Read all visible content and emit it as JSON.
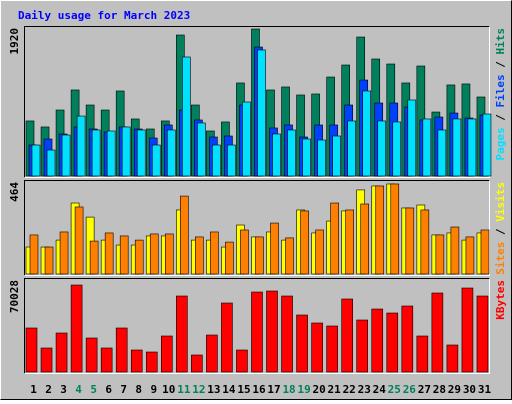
{
  "chart_data": [
    {
      "type": "bar",
      "title": "Daily usage for March 2023",
      "ylim": [
        0,
        1920
      ],
      "yticks": [
        1920
      ],
      "legend_separator": " / ",
      "series": [
        {
          "name": "Hits",
          "color": "#00805c",
          "values": [
            714,
            636,
            856,
            1116,
            921,
            856,
            1103,
            740,
            610,
            714,
            1829,
            921,
            584,
            701,
            1207,
            1907,
            1116,
            1155,
            1051,
            1064,
            1284,
            1440,
            1803,
            1518,
            1453,
            1207,
            1427,
            830,
            1181,
            1194,
            1025
          ]
        },
        {
          "name": "Files",
          "color": "#0040ff",
          "values": [
            402,
            480,
            545,
            636,
            610,
            571,
            636,
            610,
            493,
            662,
            856,
            727,
            506,
            519,
            921,
            1673,
            623,
            662,
            506,
            662,
            662,
            921,
            1245,
            947,
            947,
            895,
            727,
            765,
            817,
            752,
            791
          ]
        },
        {
          "name": "Pages",
          "color": "#00e0ff",
          "values": [
            402,
            337,
            532,
            778,
            597,
            584,
            636,
            597,
            402,
            597,
            1544,
            688,
            402,
            402,
            960,
            1635,
            545,
            597,
            480,
            467,
            519,
            714,
            1103,
            714,
            701,
            986,
            740,
            597,
            740,
            740,
            804
          ]
        }
      ]
    },
    {
      "type": "bar",
      "ylim": [
        0,
        464
      ],
      "yticks": [
        464
      ],
      "legend_separator": " / ",
      "series": [
        {
          "name": "Visits",
          "color": "#ffff00",
          "values": [
            136,
            136,
            171,
            358,
            287,
            171,
            146,
            146,
            192,
            192,
            323,
            171,
            171,
            136,
            247,
            187,
            212,
            171,
            323,
            207,
            267,
            318,
            424,
            444,
            454,
            333,
            348,
            197,
            207,
            171,
            207
          ]
        },
        {
          "name": "Sites",
          "color": "#ff8000",
          "values": [
            197,
            136,
            212,
            338,
            166,
            207,
            192,
            171,
            202,
            202,
            393,
            187,
            212,
            161,
            222,
            187,
            257,
            182,
            318,
            222,
            358,
            323,
            353,
            444,
            454,
            333,
            323,
            197,
            237,
            187,
            222
          ]
        }
      ]
    },
    {
      "type": "bar",
      "ylim": [
        0,
        70028
      ],
      "yticks": [
        70028
      ],
      "categories": [
        "1",
        "2",
        "3",
        "4",
        "5",
        "6",
        "7",
        "8",
        "9",
        "10",
        "11",
        "12",
        "13",
        "14",
        "15",
        "16",
        "17",
        "18",
        "19",
        "20",
        "21",
        "22",
        "23",
        "24",
        "25",
        "26",
        "27",
        "28",
        "29",
        "30",
        "31"
      ],
      "category_colors": [
        "#000000",
        "#000000",
        "#000000",
        "#00805c",
        "#00805c",
        "#000000",
        "#000000",
        "#000000",
        "#000000",
        "#000000",
        "#00805c",
        "#00805c",
        "#000000",
        "#000000",
        "#000000",
        "#000000",
        "#000000",
        "#00805c",
        "#00805c",
        "#000000",
        "#000000",
        "#000000",
        "#000000",
        "#000000",
        "#00805c",
        "#00805c",
        "#000000",
        "#000000",
        "#000000",
        "#000000",
        "#000000"
      ],
      "series": [
        {
          "name": "KBytes",
          "color": "#ff0000",
          "values": [
            33490,
            18270,
            29680,
            66210,
            25880,
            18270,
            33490,
            16740,
            15220,
            27400,
            57840,
            12940,
            28160,
            52510,
            16740,
            60880,
            61640,
            57840,
            43380,
            37290,
            35010,
            55560,
            39570,
            47940,
            44900,
            50230,
            27400,
            60120,
            20550,
            63920,
            57840
          ]
        }
      ]
    }
  ]
}
